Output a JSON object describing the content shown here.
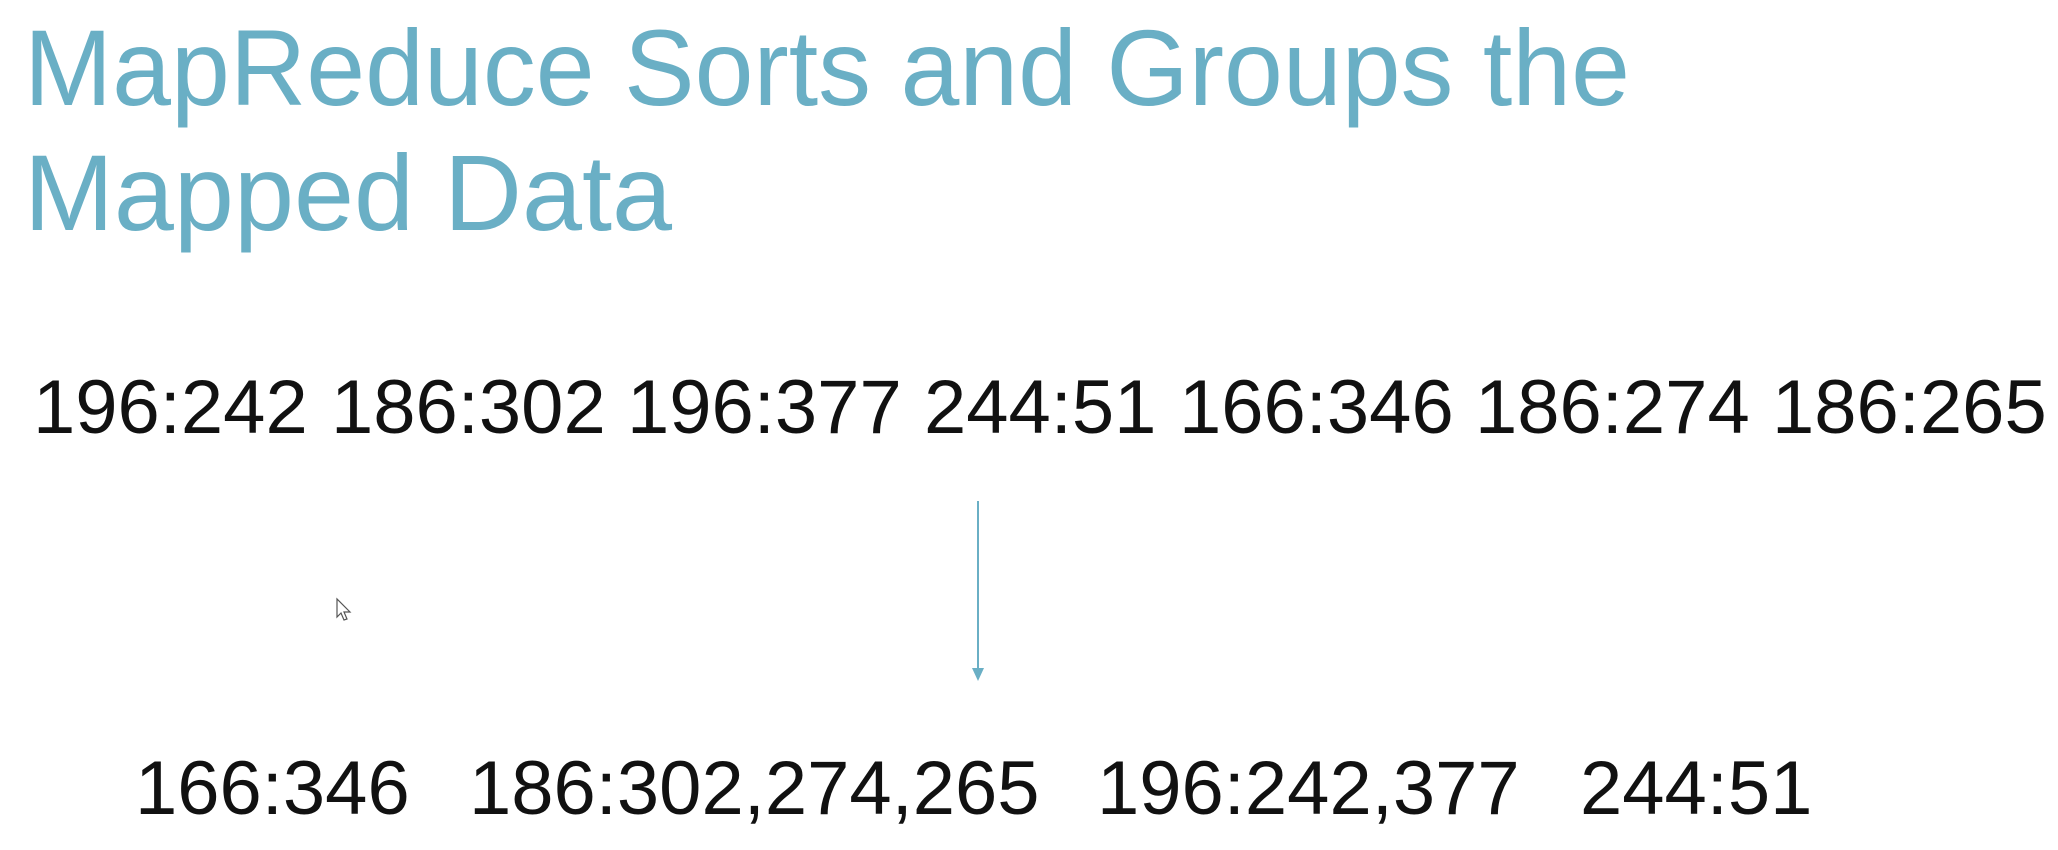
{
  "slide": {
    "title_lines": [
      "MapReduce Sorts and Groups the",
      "Mapped Data"
    ],
    "mapped": [
      "196:242",
      "186:302",
      "196:377",
      "244:51",
      "166:346",
      "186:274",
      "186:265"
    ],
    "grouped": [
      "166:346",
      "186:302,274,265",
      "196:242,377",
      "244:51"
    ]
  }
}
